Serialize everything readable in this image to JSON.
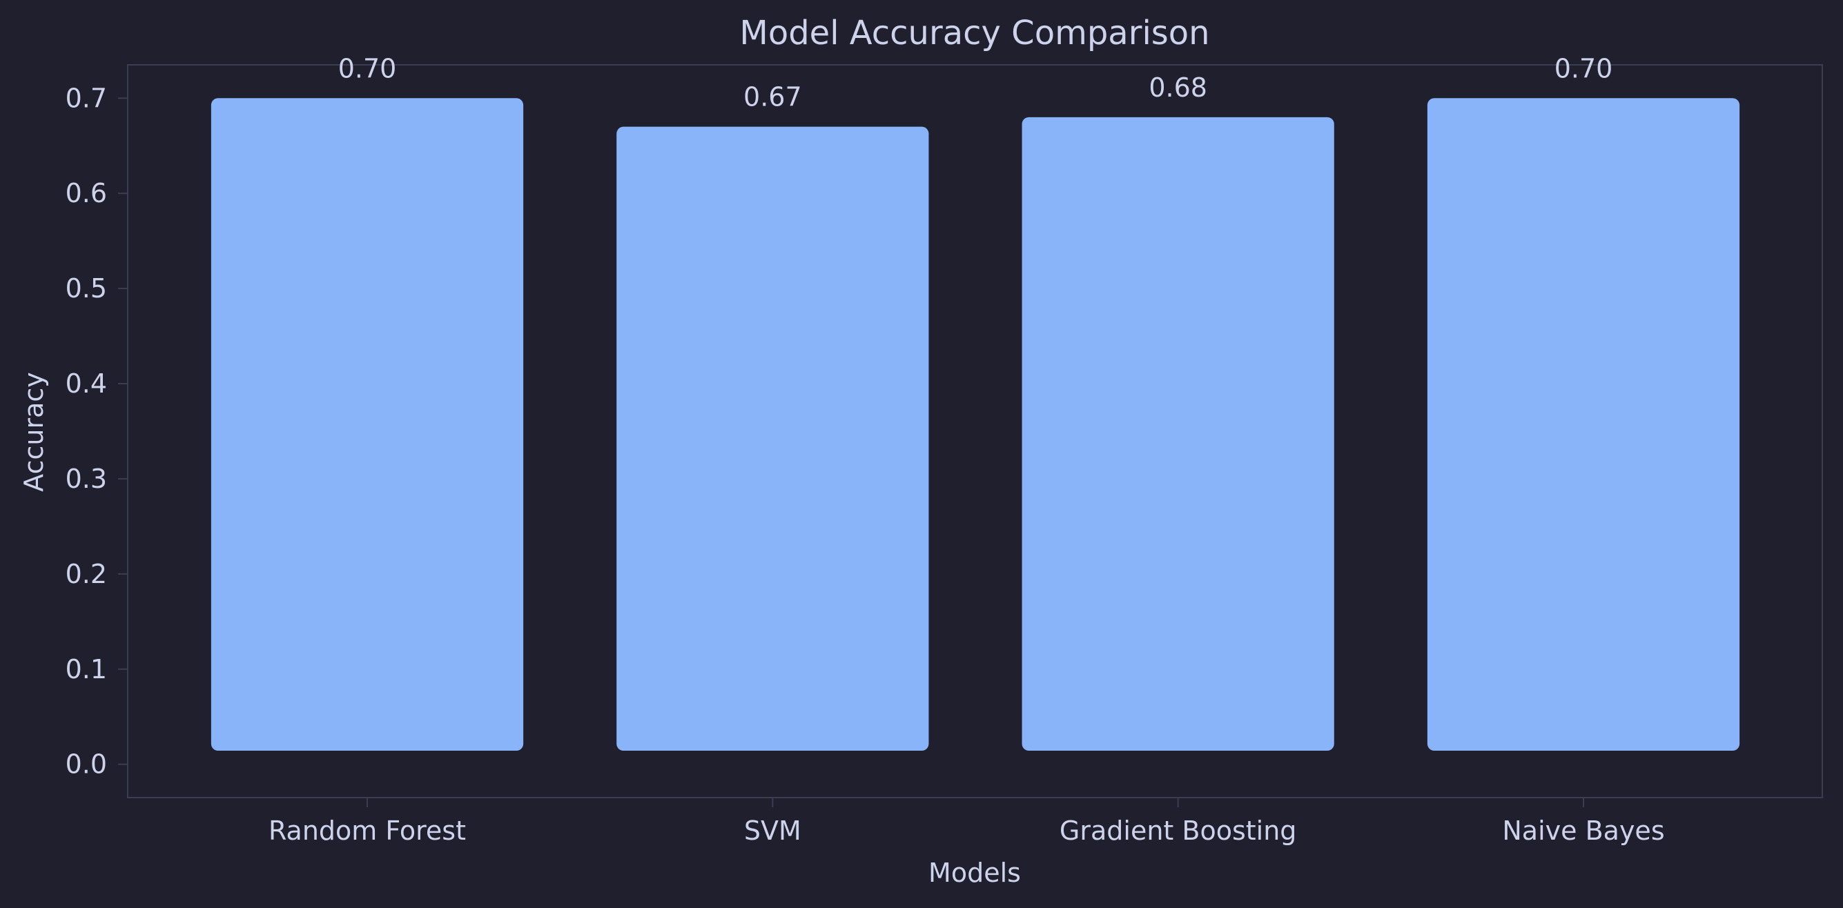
{
  "colors": {
    "background": "#1f1f2e",
    "bar": "#89b4fa",
    "text": "#cdd3ea",
    "axis": "#3b3d52"
  },
  "chart_data": {
    "type": "bar",
    "title": "Model Accuracy Comparison",
    "xlabel": "Models",
    "ylabel": "Accuracy",
    "categories": [
      "Random Forest",
      "SVM",
      "Gradient Boosting",
      "Naive Bayes"
    ],
    "values": [
      0.7,
      0.67,
      0.68,
      0.7
    ],
    "value_labels": [
      "0.70",
      "0.67",
      "0.68",
      "0.70"
    ],
    "yticks": [
      0.0,
      0.1,
      0.2,
      0.3,
      0.4,
      0.5,
      0.6,
      0.7
    ],
    "ytick_labels": [
      "0.0",
      "0.1",
      "0.2",
      "0.3",
      "0.4",
      "0.5",
      "0.6",
      "0.7"
    ],
    "ylim": [
      -0.035,
      0.735
    ],
    "grid": false,
    "legend": false
  }
}
